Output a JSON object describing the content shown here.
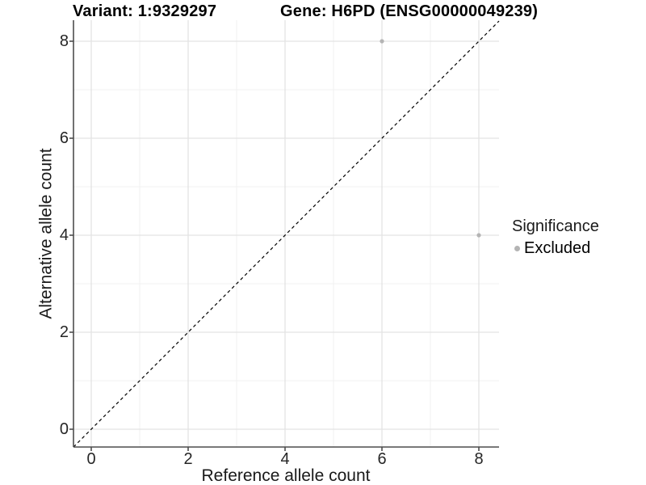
{
  "figure": {
    "title_left": "Variant: 1:9329297",
    "title_right": "Gene: H6PD (ENSG00000049239)"
  },
  "chart_data": {
    "type": "scatter",
    "title": "Variant: 1:9329297   Gene: H6PD (ENSG00000049239)",
    "xlabel": "Reference allele count",
    "ylabel": "Alternative allele count",
    "xlim": [
      -0.37,
      8.43
    ],
    "ylim": [
      -0.37,
      8.43
    ],
    "x_major_ticks": [
      0,
      2,
      4,
      6,
      8
    ],
    "y_major_ticks": [
      0,
      2,
      4,
      6,
      8
    ],
    "x_minor_gridlines": [
      1,
      3,
      5,
      7
    ],
    "y_minor_gridlines": [
      1,
      3,
      5,
      7
    ],
    "grid": true,
    "identity_line": {
      "slope": 1,
      "intercept": 0,
      "style": "dashed",
      "color": "#000000"
    },
    "series": [
      {
        "name": "Excluded",
        "points": [
          {
            "x": 6,
            "y": 8
          },
          {
            "x": 8,
            "y": 4
          }
        ]
      }
    ],
    "legend": {
      "title": "Significance",
      "position": "right",
      "items": [
        {
          "label": "Excluded",
          "color": "#b4b4b4"
        }
      ]
    },
    "colors": {
      "point": "#b4b4b4",
      "grid_major": "#e3e3e3",
      "grid_minor": "#f0f0f0",
      "axis": "#4d4d4d",
      "identity": "#000000"
    }
  }
}
